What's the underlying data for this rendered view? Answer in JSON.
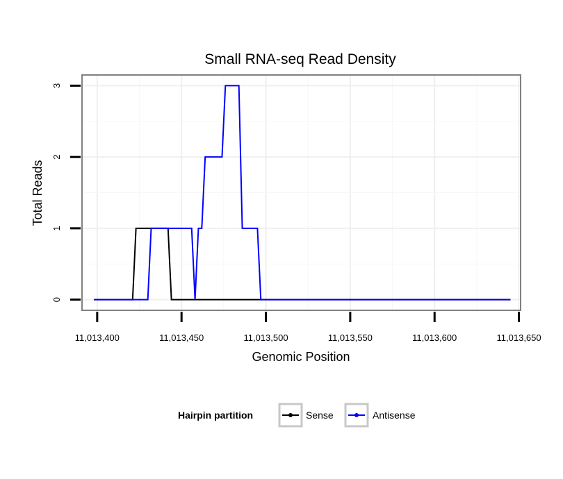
{
  "chart_data": {
    "type": "line",
    "title": "Small RNA-seq Read Density",
    "xlabel": "Genomic Position",
    "ylabel": "Total Reads",
    "xlim": [
      11013391,
      11013651
    ],
    "ylim": [
      -0.15,
      3.15
    ],
    "x_ticks": [
      11013400,
      11013450,
      11013500,
      11013550,
      11013600,
      11013650
    ],
    "x_tick_labels": [
      "11,013,400",
      "11,013,450",
      "11,013,500",
      "11,013,550",
      "11,013,600",
      "11,013,650"
    ],
    "y_ticks": [
      0,
      1,
      2,
      3
    ],
    "y_tick_labels": [
      "0",
      "1",
      "2",
      "3"
    ],
    "grid": true,
    "legend": {
      "title": "Hairpin partition",
      "position": "bottom"
    },
    "series": [
      {
        "name": "Sense",
        "color": "#000000",
        "x": [
          11013398,
          11013421,
          11013423,
          11013442,
          11013444,
          11013645
        ],
        "y": [
          0,
          0,
          1,
          1,
          0,
          0
        ]
      },
      {
        "name": "Antisense",
        "color": "#0000ff",
        "x": [
          11013398,
          11013430,
          11013432,
          11013456,
          11013458,
          11013460,
          11013462,
          11013464,
          11013466,
          11013474,
          11013476,
          11013484,
          11013486,
          11013495,
          11013497,
          11013645
        ],
        "y": [
          0,
          0,
          1,
          1,
          0,
          1,
          1,
          2,
          2,
          2,
          3,
          3,
          1,
          1,
          0,
          0
        ]
      }
    ]
  }
}
